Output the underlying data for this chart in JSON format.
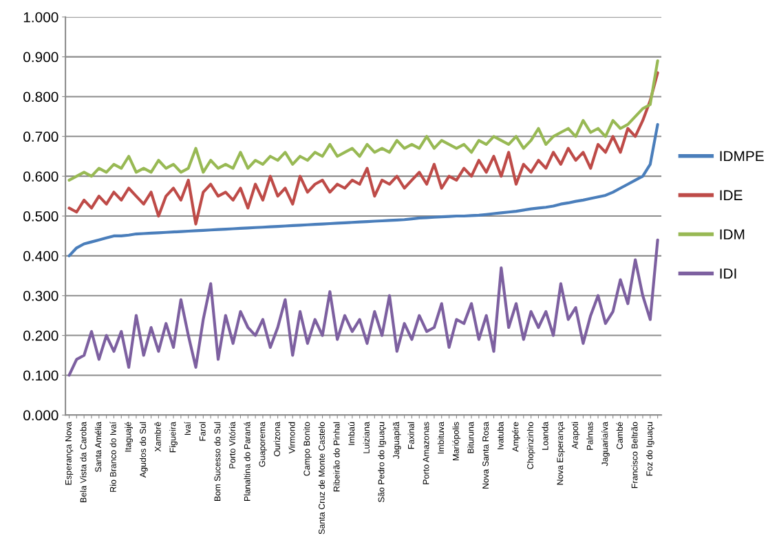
{
  "chart_data": {
    "type": "line",
    "categories": [
      "Esperança Nova",
      null,
      "Bela Vista da Caroba",
      null,
      "Santa Amélia",
      null,
      "Rio Branco do Ivaí",
      null,
      "Itaguajé",
      null,
      "Agudos do Sul",
      null,
      "Xambrê",
      null,
      "Figueira",
      null,
      "Ivaí",
      null,
      "Farol",
      null,
      "Bom Sucesso do Sul",
      null,
      "Porto Vitória",
      null,
      "Planaltina do Paraná",
      null,
      "Guaporema",
      null,
      "Ourizona",
      null,
      "Virmond",
      null,
      "Campo Bonito",
      null,
      "Santa Cruz de Monte Castelo",
      null,
      "Ribeirão do Pinhal",
      null,
      "Imbaú",
      null,
      "Luiziana",
      null,
      "São Pedro do Iguaçu",
      null,
      "Jaguapitã",
      null,
      "Faxinal",
      null,
      "Porto Amazonas",
      null,
      "Imbituva",
      null,
      "Mariópolis",
      null,
      "Bituruna",
      null,
      "Nova Santa Rosa",
      null,
      "Ivatuba",
      null,
      "Ampére",
      null,
      "Chopinzinho",
      null,
      "Loanda",
      null,
      "Nova Esperança",
      null,
      "Arapoti",
      null,
      "Palmas",
      null,
      "Jaguariaíva",
      null,
      "Cambé",
      null,
      "Francisco Beltrão",
      null,
      "Foz do Iguaçu",
      null
    ],
    "series": [
      {
        "name": "IDMPE",
        "color": "#4a7ebb",
        "values": [
          0.4,
          0.42,
          0.43,
          0.435,
          0.44,
          0.445,
          0.45,
          0.45,
          0.452,
          0.455,
          0.456,
          0.457,
          0.458,
          0.459,
          0.46,
          0.461,
          0.462,
          0.463,
          0.464,
          0.465,
          0.466,
          0.467,
          0.468,
          0.469,
          0.47,
          0.471,
          0.472,
          0.473,
          0.474,
          0.475,
          0.476,
          0.477,
          0.478,
          0.479,
          0.48,
          0.481,
          0.482,
          0.483,
          0.484,
          0.485,
          0.486,
          0.487,
          0.488,
          0.489,
          0.49,
          0.491,
          0.493,
          0.495,
          0.496,
          0.497,
          0.498,
          0.499,
          0.5,
          0.5,
          0.501,
          0.502,
          0.504,
          0.506,
          0.508,
          0.51,
          0.512,
          0.515,
          0.518,
          0.52,
          0.522,
          0.525,
          0.53,
          0.533,
          0.537,
          0.54,
          0.544,
          0.548,
          0.552,
          0.56,
          0.57,
          0.58,
          0.59,
          0.6,
          0.63,
          0.73
        ]
      },
      {
        "name": "IDE",
        "color": "#be4b48",
        "values": [
          0.52,
          0.51,
          0.54,
          0.52,
          0.55,
          0.53,
          0.56,
          0.54,
          0.57,
          0.55,
          0.53,
          0.56,
          0.5,
          0.55,
          0.57,
          0.54,
          0.59,
          0.48,
          0.56,
          0.58,
          0.55,
          0.56,
          0.54,
          0.57,
          0.52,
          0.58,
          0.54,
          0.6,
          0.55,
          0.57,
          0.53,
          0.6,
          0.56,
          0.58,
          0.59,
          0.56,
          0.58,
          0.57,
          0.59,
          0.58,
          0.62,
          0.55,
          0.59,
          0.58,
          0.6,
          0.57,
          0.59,
          0.61,
          0.58,
          0.63,
          0.57,
          0.6,
          0.59,
          0.62,
          0.6,
          0.64,
          0.61,
          0.65,
          0.6,
          0.66,
          0.58,
          0.63,
          0.61,
          0.64,
          0.62,
          0.66,
          0.63,
          0.67,
          0.64,
          0.66,
          0.62,
          0.68,
          0.66,
          0.7,
          0.66,
          0.72,
          0.7,
          0.74,
          0.79,
          0.86
        ]
      },
      {
        "name": "IDM",
        "color": "#98b954",
        "values": [
          0.59,
          0.6,
          0.61,
          0.6,
          0.62,
          0.61,
          0.63,
          0.62,
          0.65,
          0.61,
          0.62,
          0.61,
          0.64,
          0.62,
          0.63,
          0.61,
          0.62,
          0.67,
          0.61,
          0.64,
          0.62,
          0.63,
          0.62,
          0.66,
          0.62,
          0.64,
          0.63,
          0.65,
          0.64,
          0.66,
          0.63,
          0.65,
          0.64,
          0.66,
          0.65,
          0.68,
          0.65,
          0.66,
          0.67,
          0.65,
          0.68,
          0.66,
          0.67,
          0.66,
          0.69,
          0.67,
          0.68,
          0.67,
          0.7,
          0.67,
          0.69,
          0.68,
          0.67,
          0.68,
          0.66,
          0.69,
          0.68,
          0.7,
          0.69,
          0.68,
          0.7,
          0.67,
          0.69,
          0.72,
          0.68,
          0.7,
          0.71,
          0.72,
          0.7,
          0.74,
          0.71,
          0.72,
          0.7,
          0.74,
          0.72,
          0.73,
          0.75,
          0.77,
          0.78,
          0.89
        ]
      },
      {
        "name": "IDI",
        "color": "#7d60a0",
        "values": [
          0.1,
          0.14,
          0.15,
          0.21,
          0.14,
          0.2,
          0.16,
          0.21,
          0.12,
          0.25,
          0.15,
          0.22,
          0.16,
          0.23,
          0.17,
          0.29,
          0.2,
          0.12,
          0.24,
          0.33,
          0.14,
          0.25,
          0.18,
          0.26,
          0.22,
          0.2,
          0.24,
          0.17,
          0.22,
          0.29,
          0.15,
          0.26,
          0.18,
          0.24,
          0.2,
          0.31,
          0.19,
          0.25,
          0.21,
          0.24,
          0.18,
          0.26,
          0.2,
          0.3,
          0.16,
          0.23,
          0.19,
          0.25,
          0.21,
          0.22,
          0.28,
          0.17,
          0.24,
          0.23,
          0.28,
          0.19,
          0.25,
          0.16,
          0.37,
          0.22,
          0.28,
          0.19,
          0.26,
          0.22,
          0.26,
          0.2,
          0.33,
          0.24,
          0.27,
          0.18,
          0.25,
          0.3,
          0.23,
          0.26,
          0.34,
          0.28,
          0.39,
          0.3,
          0.24,
          0.44
        ]
      }
    ],
    "ylim": [
      0,
      1
    ],
    "yticks": [
      {
        "value": 0,
        "label": "0.000"
      },
      {
        "value": 0.1,
        "label": "0.100"
      },
      {
        "value": 0.2,
        "label": "0.200"
      },
      {
        "value": 0.3,
        "label": "0.300"
      },
      {
        "value": 0.4,
        "label": "0.400"
      },
      {
        "value": 0.5,
        "label": "0.500"
      },
      {
        "value": 0.6,
        "label": "0.600"
      },
      {
        "value": 0.7,
        "label": "0.700"
      },
      {
        "value": 0.8,
        "label": "0.800"
      },
      {
        "value": 0.9,
        "label": "0.900"
      },
      {
        "value": 1,
        "label": "1.000"
      }
    ],
    "grid": "y",
    "legend": "right"
  }
}
